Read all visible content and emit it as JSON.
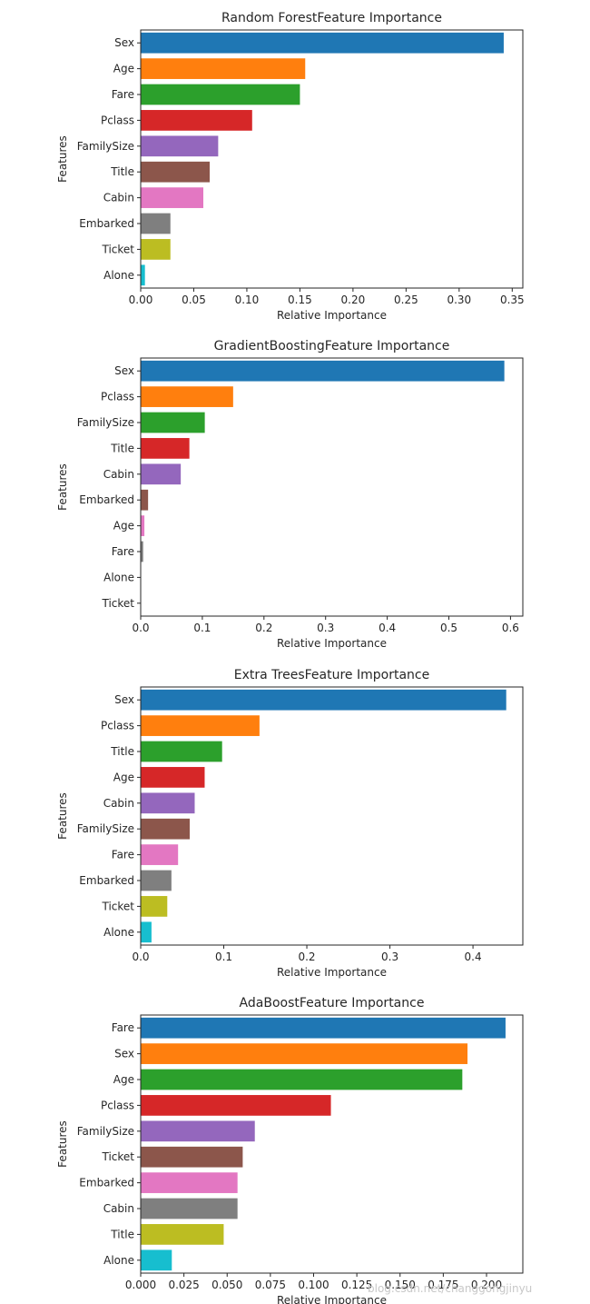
{
  "watermark": "blog.csdn.net/changgongjinyu",
  "colors": [
    "#1f77b4",
    "#ff7f0e",
    "#2ca02c",
    "#d62728",
    "#9467bd",
    "#8c564b",
    "#e377c2",
    "#7f7f7f",
    "#bcbd22",
    "#17becf"
  ],
  "chart_data": [
    {
      "type": "bar",
      "orientation": "horizontal",
      "title": "Random ForestFeature Importance",
      "xlabel": "Relative Importance",
      "ylabel": "Features",
      "categories": [
        "Sex",
        "Age",
        "Fare",
        "Pclass",
        "FamilySize",
        "Title",
        "Cabin",
        "Embarked",
        "Ticket",
        "Alone"
      ],
      "values": [
        0.342,
        0.155,
        0.15,
        0.105,
        0.073,
        0.065,
        0.059,
        0.028,
        0.028,
        0.004
      ],
      "xlim": [
        0,
        0.36
      ],
      "xticks": [
        0,
        0.05,
        0.1,
        0.15,
        0.2,
        0.25,
        0.3,
        0.35
      ],
      "xtick_labels": [
        "0.00",
        "0.05",
        "0.10",
        "0.15",
        "0.20",
        "0.25",
        "0.30",
        "0.35"
      ]
    },
    {
      "type": "bar",
      "orientation": "horizontal",
      "title": "GradientBoostingFeature Importance",
      "xlabel": "Relative Importance",
      "ylabel": "Features",
      "categories": [
        "Sex",
        "Pclass",
        "FamilySize",
        "Title",
        "Cabin",
        "Embarked",
        "Age",
        "Fare",
        "Alone",
        "Ticket"
      ],
      "values": [
        0.59,
        0.15,
        0.104,
        0.079,
        0.065,
        0.012,
        0.006,
        0.004,
        0.0,
        0.0
      ],
      "xlim": [
        0,
        0.62
      ],
      "xticks": [
        0,
        0.1,
        0.2,
        0.3,
        0.4,
        0.5,
        0.6
      ],
      "xtick_labels": [
        "0.0",
        "0.1",
        "0.2",
        "0.3",
        "0.4",
        "0.5",
        "0.6"
      ]
    },
    {
      "type": "bar",
      "orientation": "horizontal",
      "title": "Extra TreesFeature Importance",
      "xlabel": "Relative Importance",
      "ylabel": "Features",
      "categories": [
        "Sex",
        "Pclass",
        "Title",
        "Age",
        "Cabin",
        "FamilySize",
        "Fare",
        "Embarked",
        "Ticket",
        "Alone"
      ],
      "values": [
        0.44,
        0.143,
        0.098,
        0.077,
        0.065,
        0.059,
        0.045,
        0.037,
        0.032,
        0.013
      ],
      "xlim": [
        0,
        0.46
      ],
      "xticks": [
        0,
        0.1,
        0.2,
        0.3,
        0.4
      ],
      "xtick_labels": [
        "0.0",
        "0.1",
        "0.2",
        "0.3",
        "0.4"
      ]
    },
    {
      "type": "bar",
      "orientation": "horizontal",
      "title": "AdaBoostFeature Importance",
      "xlabel": "Relative Importance",
      "ylabel": "Features",
      "categories": [
        "Fare",
        "Sex",
        "Age",
        "Pclass",
        "FamilySize",
        "Ticket",
        "Embarked",
        "Cabin",
        "Title",
        "Alone"
      ],
      "values": [
        0.211,
        0.189,
        0.186,
        0.11,
        0.066,
        0.059,
        0.056,
        0.056,
        0.048,
        0.018
      ],
      "xlim": [
        0,
        0.221
      ],
      "xticks": [
        0,
        0.025,
        0.05,
        0.075,
        0.1,
        0.125,
        0.15,
        0.175,
        0.2
      ],
      "xtick_labels": [
        "0.000",
        "0.025",
        "0.050",
        "0.075",
        "0.100",
        "0.125",
        "0.150",
        "0.175",
        "0.200"
      ]
    }
  ]
}
